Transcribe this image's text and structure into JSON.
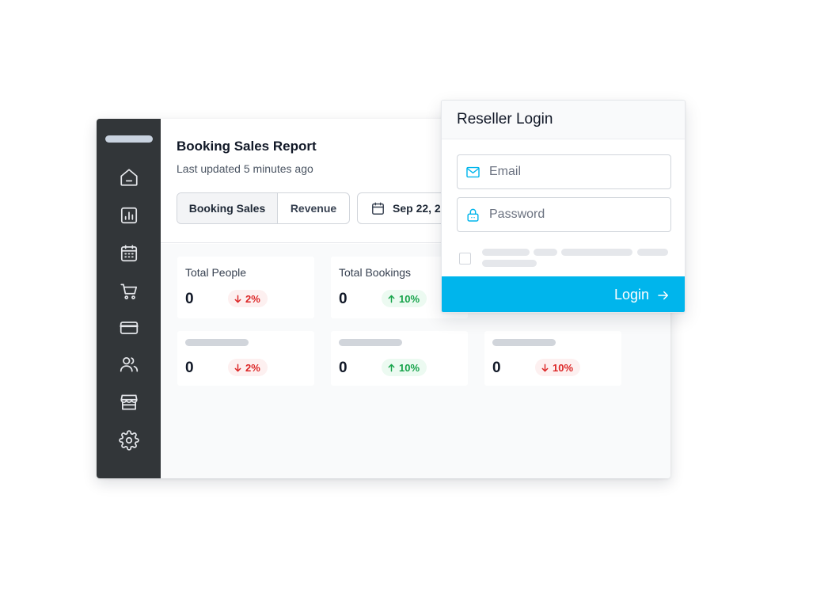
{
  "sidebar": {
    "items": [
      {
        "icon": "home-icon"
      },
      {
        "icon": "bar-chart-icon"
      },
      {
        "icon": "calendar-icon"
      },
      {
        "icon": "cart-icon"
      },
      {
        "icon": "credit-card-icon"
      },
      {
        "icon": "users-icon"
      },
      {
        "icon": "store-icon"
      },
      {
        "icon": "gear-icon"
      }
    ]
  },
  "report": {
    "title": "Booking Sales Report",
    "subtitle": "Last updated 5 minutes ago",
    "tabs": [
      {
        "label": "Booking Sales",
        "active": true
      },
      {
        "label": "Revenue",
        "active": false
      }
    ],
    "date_label": "Sep 22, 2"
  },
  "cards": [
    {
      "label": "Total People",
      "value": "0",
      "change": "2%",
      "direction": "down"
    },
    {
      "label": "Total Bookings",
      "value": "0",
      "change": "10%",
      "direction": "up"
    },
    {
      "label": "",
      "value": "0",
      "change": "2%",
      "direction": "down"
    },
    {
      "label": "",
      "value": "0",
      "change": "10%",
      "direction": "up"
    },
    {
      "label": "",
      "value": "0",
      "change": "10%",
      "direction": "down"
    }
  ],
  "login": {
    "title": "Reseller Login",
    "email_placeholder": "Email",
    "password_placeholder": "Password",
    "button_label": "Login"
  },
  "colors": {
    "sidebar_bg": "#323639",
    "accent": "#00b5ec",
    "positive": "#16a34a",
    "negative": "#dc2626"
  }
}
